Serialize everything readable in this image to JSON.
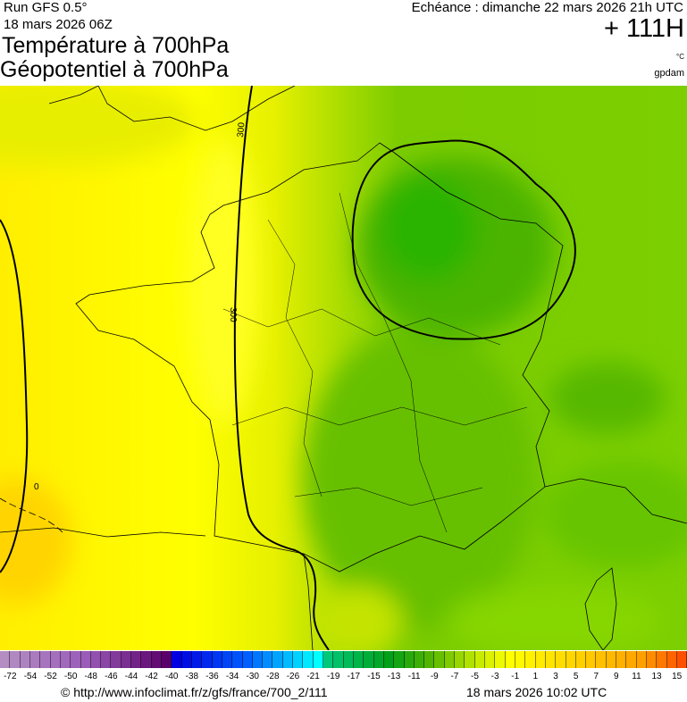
{
  "header": {
    "run": "Run GFS 0.5°",
    "run_date": "18 mars 2026 06Z",
    "title_line1": "Température à 700hPa",
    "title_line2": "Géopotentiel à 700hPa",
    "echeance": "Echéance : dimanche 22 mars 2026 21h UTC",
    "lead_time": "+ 111H",
    "unit_temperature": "°C",
    "unit_geopotential": "gpdam"
  },
  "map": {
    "contour_labels": [
      "300",
      "300",
      "0"
    ],
    "colors": {
      "west": "#ffff00",
      "southwest": "#ffe600",
      "center": "#d4ea00",
      "east": "#76c800",
      "cold_core": "#2cb400"
    }
  },
  "colorbar": {
    "labels": [
      "-72",
      "-54",
      "-52",
      "-50",
      "-48",
      "-46",
      "-44",
      "-42",
      "-40",
      "-38",
      "-36",
      "-34",
      "-30",
      "-28",
      "-26",
      "-21",
      "-19",
      "-17",
      "-15",
      "-13",
      "-11",
      "-9",
      "-7",
      "-5",
      "-3",
      "-1",
      "1",
      "3",
      "5",
      "7",
      "9",
      "11",
      "13",
      "15"
    ],
    "stops": [
      [
        0,
        "#b48ec2"
      ],
      [
        8,
        "#9a5cb8"
      ],
      [
        16,
        "#5a006a"
      ],
      [
        17,
        "#0000e0"
      ],
      [
        24,
        "#0060ff"
      ],
      [
        31,
        "#00ffff"
      ],
      [
        32,
        "#00c878"
      ],
      [
        38,
        "#00a018"
      ],
      [
        42,
        "#50b400"
      ],
      [
        47,
        "#c8ec00"
      ],
      [
        50,
        "#ffff00"
      ],
      [
        58,
        "#ffc800"
      ],
      [
        63,
        "#ffa000"
      ],
      [
        67,
        "#ff5000"
      ]
    ],
    "swatch_count": 68
  },
  "footer": {
    "credit": "© http://www.infoclimat.fr/z/gfs/france/700_2/111",
    "issued": "18 mars 2026 10:02 UTC"
  }
}
